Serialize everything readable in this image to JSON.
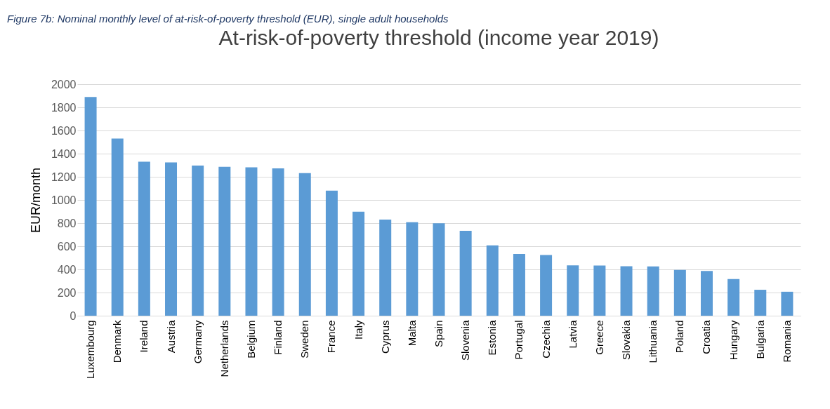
{
  "chart_data": {
    "type": "bar",
    "title": "At-risk-of-poverty threshold (income year 2019)",
    "ylabel": "EUR/month",
    "annotations": [
      "Figure 7b: Nominal monthly level of at-risk-of-poverty threshold (EUR), single adult households"
    ],
    "categories": [
      "Luxembourg",
      "Denmark",
      "Ireland",
      "Austria",
      "Germany",
      "Netherlands",
      "Belgium",
      "Finland",
      "Sweden",
      "France",
      "Italy",
      "Cyprus",
      "Malta",
      "Spain",
      "Slovenia",
      "Estonia",
      "Portugal",
      "Czechia",
      "Latvia",
      "Greece",
      "Slovakia",
      "Lithuania",
      "Poland",
      "Croatia",
      "Hungary",
      "Bulgaria",
      "Romania"
    ],
    "values": [
      1889,
      1530,
      1330,
      1324,
      1297,
      1286,
      1282,
      1272,
      1232,
      1081,
      898,
      831,
      808,
      798,
      733,
      607,
      533,
      524,
      435,
      433,
      428,
      426,
      396,
      387,
      317,
      224,
      207
    ],
    "color": "#5b9bd5",
    "ylim": [
      0,
      2000
    ],
    "yticks": [
      0,
      200,
      400,
      600,
      800,
      1000,
      1200,
      1400,
      1600,
      1800,
      2000
    ],
    "grid": "y"
  }
}
